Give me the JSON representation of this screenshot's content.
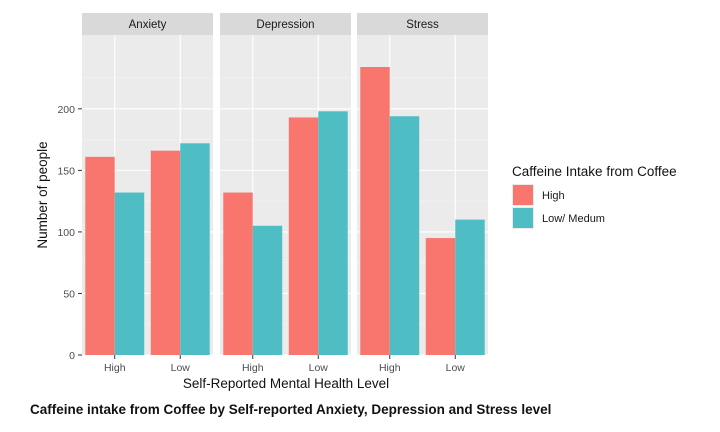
{
  "chart_data": {
    "type": "bar",
    "facets": [
      "Anxiety",
      "Depression",
      "Stress"
    ],
    "categories": [
      "High",
      "Low"
    ],
    "series": [
      {
        "name": "High",
        "color": "#F8766D",
        "values": {
          "Anxiety": [
            161,
            166
          ],
          "Depression": [
            132,
            193
          ],
          "Stress": [
            234,
            95
          ]
        }
      },
      {
        "name": "Low/ Medum",
        "color": "#4FBDC4",
        "values": {
          "Anxiety": [
            132,
            172
          ],
          "Depression": [
            105,
            198
          ],
          "Stress": [
            194,
            110
          ]
        }
      }
    ],
    "xlabel": "Self-Reported Mental Health Level",
    "ylabel": "Number of people",
    "ylim": [
      0,
      260
    ],
    "yticks": [
      0,
      50,
      100,
      150,
      200
    ],
    "legend_title": "Caffeine Intake from Coffee",
    "legend_position": "right",
    "grid": true,
    "panel_color": "#EBEBEB",
    "strip_color": "#D9D9D9"
  },
  "caption": "Caffeine intake from Coffee by Self-reported Anxiety, Depression and Stress level"
}
